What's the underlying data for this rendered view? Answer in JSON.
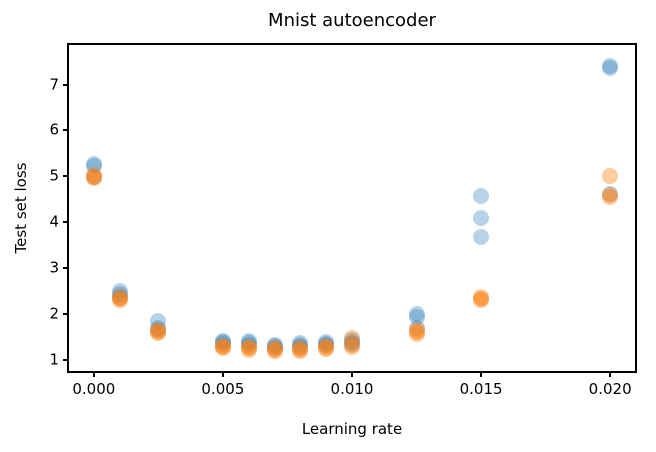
{
  "chart_data": {
    "type": "scatter",
    "title": "Mnist autoencoder",
    "xlabel": "Learning rate",
    "ylabel": "Test set loss",
    "xlim": [
      -0.000962,
      0.020962
    ],
    "ylim": [
      0.765,
      7.86
    ],
    "grid": false,
    "legend": "none",
    "axis_color": "#000000",
    "background_color": "#ffffff",
    "marker_diameter_px": 16,
    "x_ticks": [
      {
        "value": 0.0,
        "label": "0.000"
      },
      {
        "value": 0.005,
        "label": "0.005"
      },
      {
        "value": 0.01,
        "label": "0.010"
      },
      {
        "value": 0.015,
        "label": "0.015"
      },
      {
        "value": 0.02,
        "label": "0.020"
      }
    ],
    "y_ticks": [
      {
        "value": 1,
        "label": "1"
      },
      {
        "value": 2,
        "label": "2"
      },
      {
        "value": 3,
        "label": "3"
      },
      {
        "value": 4,
        "label": "4"
      },
      {
        "value": 5,
        "label": "5"
      },
      {
        "value": 6,
        "label": "6"
      },
      {
        "value": 7,
        "label": "7"
      }
    ],
    "series": [
      {
        "name": "blue",
        "color": "#1f77b4",
        "alpha": 0.32,
        "points": [
          [
            0.0,
            5.26
          ],
          [
            0.0,
            5.22
          ],
          [
            0.0,
            4.98
          ],
          [
            0.001,
            2.5
          ],
          [
            0.001,
            2.43
          ],
          [
            0.001,
            2.38
          ],
          [
            0.0025,
            1.86
          ],
          [
            0.0025,
            1.7
          ],
          [
            0.0025,
            1.66
          ],
          [
            0.005,
            1.42
          ],
          [
            0.005,
            1.39
          ],
          [
            0.005,
            1.35
          ],
          [
            0.006,
            1.41
          ],
          [
            0.006,
            1.37
          ],
          [
            0.006,
            1.32
          ],
          [
            0.007,
            1.33
          ],
          [
            0.007,
            1.3
          ],
          [
            0.007,
            1.27
          ],
          [
            0.008,
            1.37
          ],
          [
            0.008,
            1.33
          ],
          [
            0.008,
            1.29
          ],
          [
            0.009,
            1.4
          ],
          [
            0.009,
            1.36
          ],
          [
            0.009,
            1.32
          ],
          [
            0.01,
            1.44
          ],
          [
            0.01,
            1.4
          ],
          [
            0.01,
            1.36
          ],
          [
            0.0125,
            2.01
          ],
          [
            0.0125,
            1.95
          ],
          [
            0.0125,
            1.69
          ],
          [
            0.015,
            4.58
          ],
          [
            0.015,
            4.1
          ],
          [
            0.015,
            3.68
          ],
          [
            0.02,
            7.4
          ],
          [
            0.02,
            7.36
          ],
          [
            0.02,
            4.62
          ]
        ]
      },
      {
        "name": "orange",
        "color": "#ff7f0e",
        "alpha": 0.4,
        "points": [
          [
            0.0,
            5.02
          ],
          [
            0.0,
            4.99
          ],
          [
            0.0,
            4.96
          ],
          [
            0.001,
            2.37
          ],
          [
            0.001,
            2.34
          ],
          [
            0.001,
            2.31
          ],
          [
            0.0025,
            1.65
          ],
          [
            0.0025,
            1.62
          ],
          [
            0.0025,
            1.6
          ],
          [
            0.005,
            1.31
          ],
          [
            0.005,
            1.28
          ],
          [
            0.005,
            1.26
          ],
          [
            0.006,
            1.29
          ],
          [
            0.006,
            1.26
          ],
          [
            0.006,
            1.23
          ],
          [
            0.007,
            1.26
          ],
          [
            0.007,
            1.23
          ],
          [
            0.007,
            1.21
          ],
          [
            0.008,
            1.27
          ],
          [
            0.008,
            1.23
          ],
          [
            0.008,
            1.2
          ],
          [
            0.009,
            1.31
          ],
          [
            0.009,
            1.27
          ],
          [
            0.009,
            1.24
          ],
          [
            0.01,
            1.48
          ],
          [
            0.01,
            1.34
          ],
          [
            0.01,
            1.28
          ],
          [
            0.0125,
            1.66
          ],
          [
            0.0125,
            1.61
          ],
          [
            0.0125,
            1.56
          ],
          [
            0.015,
            2.37
          ],
          [
            0.015,
            2.33
          ],
          [
            0.015,
            2.3
          ],
          [
            0.02,
            5.01
          ],
          [
            0.02,
            4.6
          ],
          [
            0.02,
            4.55
          ]
        ]
      }
    ]
  }
}
